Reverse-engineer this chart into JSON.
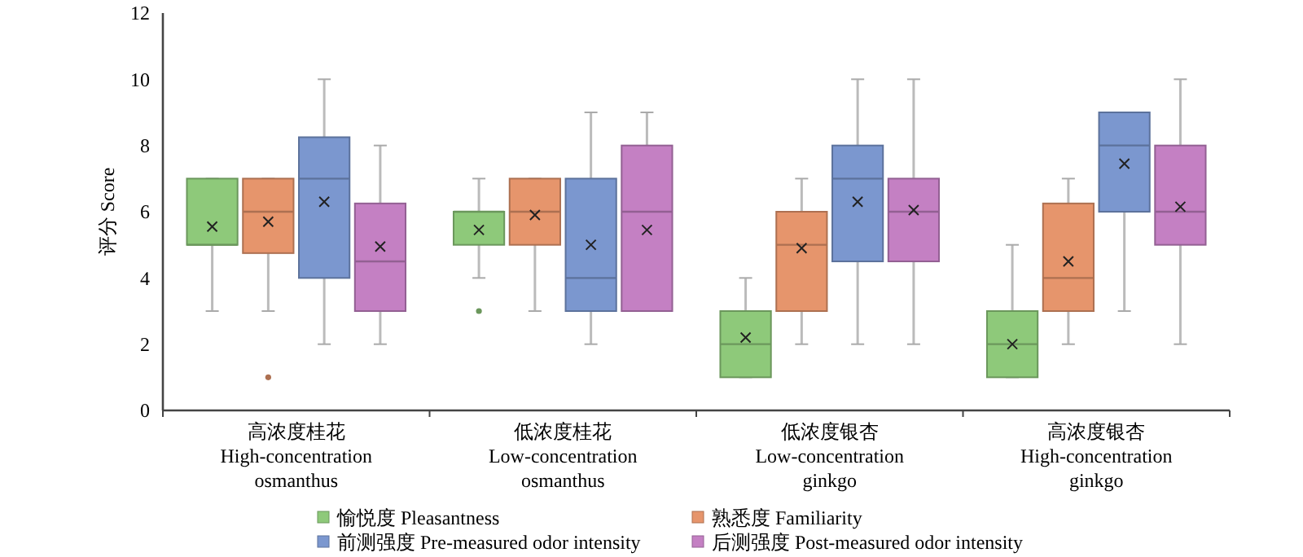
{
  "chart_data": {
    "type": "box",
    "ylabel": "评分 Score",
    "categories": [
      "高浓度桂花\nHigh-concentration\nosmanthus",
      "低浓度桂花\nLow-concentration\nosmanthus",
      "低浓度银杏\nLow-concentration\nginkgo",
      "高浓度银杏\nHigh-concentration\nginkgo"
    ],
    "ylim": [
      0,
      12
    ],
    "yticks": [
      0,
      2,
      4,
      6,
      8,
      10,
      12
    ],
    "grid": false,
    "legend": "bottom",
    "series": [
      {
        "name": "愉悦度 Pleasantness",
        "color": "#8ec97a",
        "boxes": [
          {
            "low": 3,
            "q1": 5,
            "median": 5,
            "q3": 7,
            "high": 7,
            "mean": 5.55
          },
          {
            "low": 4,
            "q1": 5,
            "median": 6,
            "q3": 6,
            "high": 7,
            "mean": 5.45,
            "outliers": [
              3
            ]
          },
          {
            "low": 1,
            "q1": 1,
            "median": 2,
            "q3": 3,
            "high": 4,
            "mean": 2.2
          },
          {
            "low": 1,
            "q1": 1,
            "median": 2,
            "q3": 3,
            "high": 5,
            "mean": 2
          }
        ]
      },
      {
        "name": "熟悉度 Familiarity",
        "color": "#e6956c",
        "boxes": [
          {
            "low": 3,
            "q1": 4.75,
            "median": 6,
            "q3": 7,
            "high": 7,
            "mean": 5.7,
            "outliers": [
              1
            ]
          },
          {
            "low": 3,
            "q1": 5,
            "median": 6,
            "q3": 7,
            "high": 7,
            "mean": 5.9
          },
          {
            "low": 2,
            "q1": 3,
            "median": 5,
            "q3": 6,
            "high": 7,
            "mean": 4.9
          },
          {
            "low": 2,
            "q1": 3,
            "median": 4,
            "q3": 6.25,
            "high": 7,
            "mean": 4.5
          }
        ]
      },
      {
        "name": "前测强度 Pre-measured odor intensity",
        "color": "#7b97cf",
        "boxes": [
          {
            "low": 2,
            "q1": 4,
            "median": 7,
            "q3": 8.25,
            "high": 10,
            "mean": 6.3
          },
          {
            "low": 2,
            "q1": 3,
            "median": 4,
            "q3": 7,
            "high": 9,
            "mean": 5
          },
          {
            "low": 2,
            "q1": 4.5,
            "median": 7,
            "q3": 8,
            "high": 10,
            "mean": 6.3
          },
          {
            "low": 3,
            "q1": 6,
            "median": 8,
            "q3": 9,
            "high": 9,
            "mean": 7.45
          }
        ]
      },
      {
        "name": "后测强度 Post-measured odor intensity",
        "color": "#c480c3",
        "boxes": [
          {
            "low": 2,
            "q1": 3,
            "median": 4.5,
            "q3": 6.25,
            "high": 8,
            "mean": 4.95
          },
          {
            "low": 3,
            "q1": 3,
            "median": 6,
            "q3": 8,
            "high": 9,
            "mean": 5.45
          },
          {
            "low": 2,
            "q1": 4.5,
            "median": 6,
            "q3": 7,
            "high": 10,
            "mean": 6.05
          },
          {
            "low": 2,
            "q1": 5,
            "median": 6,
            "q3": 8,
            "high": 10,
            "mean": 6.15
          }
        ]
      }
    ]
  }
}
